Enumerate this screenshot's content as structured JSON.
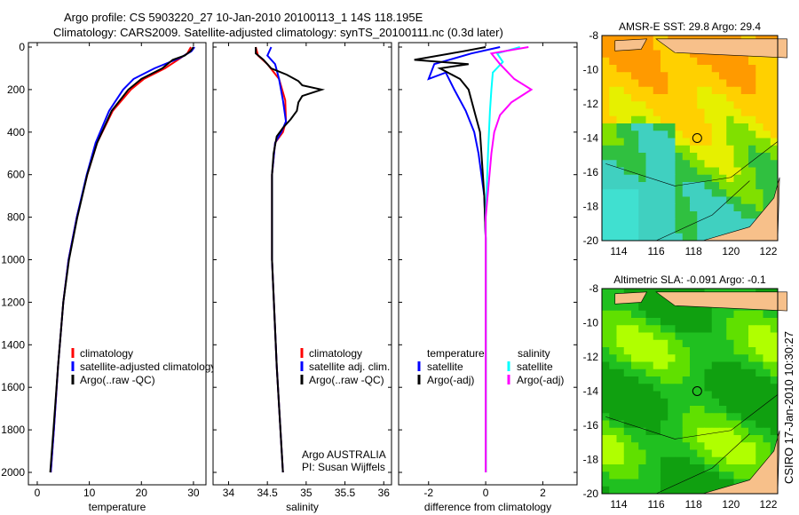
{
  "title": {
    "line1": "Argo profile: CS 5903220_27 10-Jan-2010 20100113_1 14S 118.195E",
    "line2": "Climatology: CARS2009. Satellite-adjusted climatology: synTS_20100111.nc (0.3d later)"
  },
  "footer_vertical": "CSIRO 17-Jan-2010 10:30:27",
  "chart_data": [
    {
      "type": "line",
      "xlabel": "temperature",
      "ylabel": "",
      "xlim": [
        -1.7,
        32.4
      ],
      "ylim": [
        2100,
        -20
      ],
      "xticks": [
        0,
        10,
        20,
        30
      ],
      "yticks": [
        0,
        200,
        400,
        600,
        800,
        1000,
        1200,
        1400,
        1600,
        1800,
        2000
      ],
      "legend": [
        "climatology",
        "satellite-adjusted climatology",
        "Argo(..raw -QC)"
      ],
      "series": [
        {
          "name": "climatology",
          "color": "#ff0000",
          "depth": [
            0,
            30,
            60,
            100,
            150,
            200,
            300,
            450,
            600,
            800,
            1000,
            1200,
            1500,
            1800,
            2000
          ],
          "values": [
            29.5,
            28.8,
            27,
            24.5,
            20.5,
            18,
            14.5,
            11.5,
            9.6,
            7.6,
            6,
            5,
            4,
            3.2,
            2.6
          ]
        },
        {
          "name": "satellite-adjusted climatology",
          "color": "#0000ff",
          "depth": [
            0,
            20,
            50,
            100,
            150,
            200,
            300,
            450,
            600,
            800,
            1000,
            1200,
            1500,
            1800,
            2000
          ],
          "values": [
            30.2,
            29.6,
            27.5,
            22.5,
            18.5,
            16.5,
            13.8,
            11.2,
            9.5,
            7.6,
            6,
            5,
            4,
            3.2,
            2.6
          ]
        },
        {
          "name": "Argo(..raw -QC)",
          "color": "#000000",
          "depth": [
            0,
            20,
            40,
            60,
            100,
            150,
            200,
            300,
            450,
            600,
            800,
            1000,
            1200,
            1500,
            1800,
            2000
          ],
          "values": [
            30,
            29.4,
            28.3,
            26,
            24,
            20,
            17.5,
            14.3,
            11.5,
            9.6,
            7.7,
            6.1,
            5,
            4,
            3.1,
            2.5
          ]
        }
      ]
    },
    {
      "type": "line",
      "xlabel": "salinity",
      "xlim": [
        33.8,
        36.1
      ],
      "ylim": [
        2100,
        -20
      ],
      "xticks": [
        34,
        34.5,
        35,
        35.5,
        36
      ],
      "legend": [
        "climatology",
        "satellite adj. clim.",
        "Argo(..raw -QC)"
      ],
      "note": [
        "Argo AUSTRALIA",
        "PI: Susan Wijffels"
      ],
      "series": [
        {
          "name": "climatology",
          "color": "#ff0000",
          "depth": [
            0,
            40,
            80,
            150,
            250,
            350,
            400,
            450,
            600,
            1000,
            1500,
            2000
          ],
          "values": [
            34.35,
            34.38,
            34.5,
            34.65,
            34.73,
            34.74,
            34.7,
            34.6,
            34.56,
            34.56,
            34.62,
            34.7
          ]
        },
        {
          "name": "satellite adj. clim.",
          "color": "#0000ff",
          "depth": [
            0,
            40,
            80,
            150,
            250,
            350,
            400,
            450,
            600,
            1000,
            1500,
            2000
          ],
          "values": [
            34.55,
            34.5,
            34.6,
            34.65,
            34.7,
            34.74,
            34.68,
            34.6,
            34.56,
            34.56,
            34.62,
            34.7
          ]
        },
        {
          "name": "Argo(..raw -QC)",
          "color": "#000000",
          "depth": [
            0,
            30,
            60,
            100,
            130,
            160,
            180,
            200,
            230,
            260,
            300,
            340,
            380,
            420,
            500,
            600,
            1000,
            1500,
            2000
          ],
          "values": [
            34.35,
            34.35,
            34.45,
            34.55,
            34.75,
            34.9,
            34.95,
            35.2,
            34.95,
            34.9,
            34.88,
            34.8,
            34.7,
            34.62,
            34.58,
            34.56,
            34.56,
            34.62,
            34.7
          ]
        }
      ]
    },
    {
      "type": "line",
      "xlabel": "difference from climatology",
      "xlim": [
        -3.05,
        3.2
      ],
      "ylim": [
        2100,
        -20
      ],
      "xticks": [
        -2,
        0,
        2
      ],
      "legend_titles": [
        "temperature",
        "salinity"
      ],
      "legend": [
        "satellite",
        "Argo(-adj)",
        "satellite",
        "Argo(-adj)"
      ],
      "series": [
        {
          "name": "temperature satellite",
          "color": "#0000ff",
          "depth": [
            0,
            30,
            80,
            150,
            120,
            200,
            300,
            400,
            500,
            700,
            900,
            2000
          ],
          "values": [
            0.5,
            -0.5,
            -1.8,
            -2.0,
            -1.4,
            -1.1,
            -0.7,
            -0.4,
            -0.25,
            -0.05,
            0,
            0
          ]
        },
        {
          "name": "temperature Argo(-adj)",
          "color": "#000000",
          "depth": [
            0,
            20,
            60,
            80,
            100,
            150,
            200,
            300,
            400,
            500,
            700,
            900,
            2000
          ],
          "values": [
            0,
            -0.8,
            -2.5,
            -0.6,
            -1.6,
            -0.9,
            -0.6,
            -0.4,
            -0.2,
            -0.15,
            -0.05,
            0,
            0
          ]
        },
        {
          "name": "salinity satellite",
          "color": "#00ffff",
          "depth": [
            0,
            30,
            70,
            120,
            200,
            300,
            500,
            800,
            2000
          ],
          "values": [
            1.2,
            0.4,
            0.6,
            0.25,
            0.2,
            0.15,
            0.08,
            0,
            0
          ]
        },
        {
          "name": "salinity Argo(-adj)",
          "color": "#ff00ff",
          "depth": [
            0,
            30,
            80,
            150,
            200,
            260,
            320,
            400,
            500,
            800,
            2000
          ],
          "values": [
            1.5,
            0.2,
            0.5,
            1.0,
            1.6,
            0.9,
            0.5,
            0.3,
            0.2,
            0,
            0
          ]
        }
      ]
    }
  ],
  "maps": [
    {
      "title": "AMSR-E SST: 29.8 Argo: 29.4",
      "xticks": [
        114,
        116,
        118,
        120,
        122
      ],
      "yticks": [
        -8,
        -10,
        -12,
        -14,
        -16,
        -18,
        -20
      ]
    },
    {
      "title": "Altimetric SLA: -0.091 Argo: -0.1",
      "xticks": [
        114,
        116,
        118,
        120,
        122
      ],
      "yticks": [
        -8,
        -10,
        -12,
        -14,
        -16,
        -18,
        -20
      ]
    }
  ],
  "argo_position": {
    "lon": 118.195,
    "lat": -14
  }
}
